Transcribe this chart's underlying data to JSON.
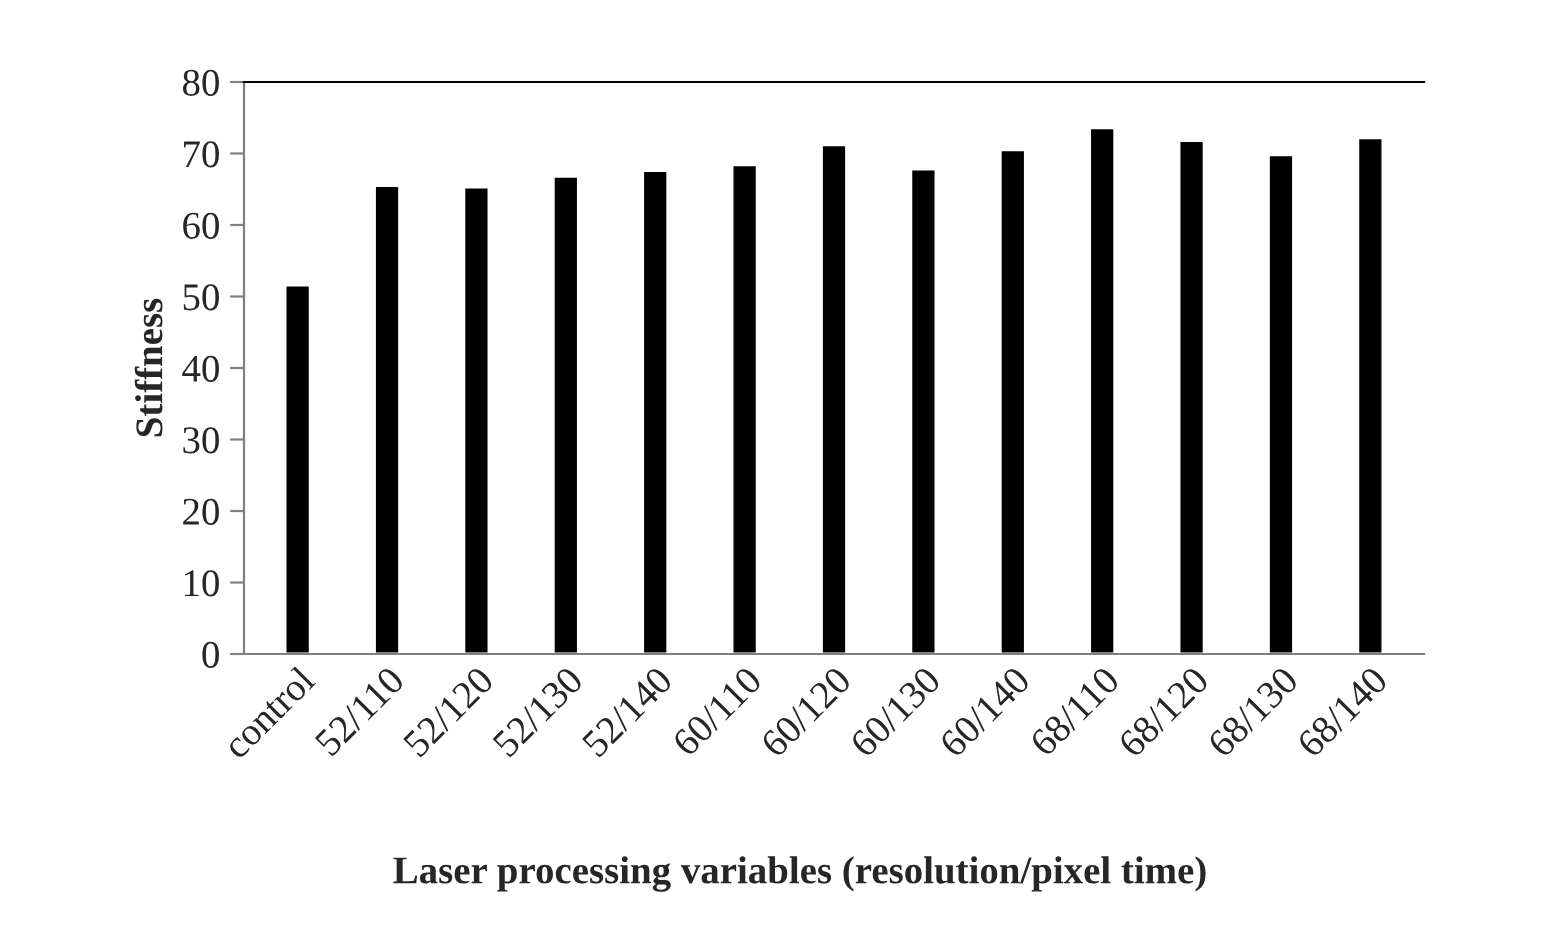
{
  "chart_data": {
    "type": "bar",
    "xlabel": "Laser processing variables (resolution/pixel time)",
    "ylabel": "Stiffness",
    "categories": [
      "control",
      "52/110",
      "52/120",
      "52/130",
      "52/140",
      "60/110",
      "60/120",
      "60/130",
      "60/140",
      "68/110",
      "68/120",
      "68/130",
      "68/140"
    ],
    "values": [
      51.6,
      65.5,
      65.3,
      66.8,
      67.6,
      68.4,
      71.2,
      67.8,
      70.5,
      73.6,
      71.8,
      69.8,
      72.2
    ],
    "color": "#000000",
    "ylim": [
      0,
      80
    ],
    "yticks": [
      0,
      10,
      20,
      30,
      40,
      50,
      60,
      70,
      80
    ],
    "grid": false,
    "legend": false
  }
}
